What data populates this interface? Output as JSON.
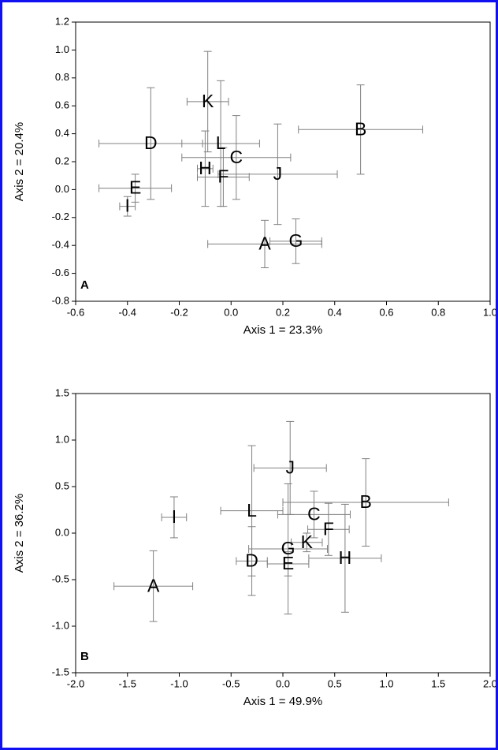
{
  "chart_data": [
    {
      "type": "scatter",
      "panel_label": "A",
      "xlabel": "Axis 1 = 23.3%",
      "ylabel": "Axis 2 = 20.4%",
      "xlim": [
        -0.6,
        1.0
      ],
      "ylim": [
        -0.8,
        1.2
      ],
      "xticks": [
        -0.6,
        -0.4,
        -0.2,
        {
          "value": 0,
          "label": "0.0"
        },
        0.2,
        0.4,
        0.6,
        0.8,
        {
          "value": 1,
          "label": "1.0"
        }
      ],
      "yticks": [
        -0.8,
        -0.6,
        -0.4,
        -0.2,
        {
          "value": 0,
          "label": "0.0"
        },
        0.2,
        0.4,
        0.6,
        0.8,
        {
          "value": 1,
          "label": "1.0"
        },
        1.2
      ],
      "labels": [
        "A",
        "B",
        "C",
        "D",
        "E",
        "F",
        "G",
        "H",
        "I",
        "J",
        "K",
        "L"
      ],
      "x": [
        0.13,
        0.5,
        0.02,
        -0.31,
        -0.37,
        -0.03,
        0.25,
        -0.1,
        -0.4,
        0.18,
        -0.09,
        -0.04
      ],
      "y": [
        -0.39,
        0.43,
        0.23,
        0.33,
        0.01,
        0.09,
        -0.37,
        0.15,
        -0.12,
        0.11,
        0.63,
        0.33
      ],
      "xerr": [
        0.22,
        0.24,
        0.21,
        0.2,
        0.14,
        0.1,
        0.1,
        0.03,
        0.03,
        0.23,
        0.08,
        0.15
      ],
      "yerr": [
        0.17,
        0.32,
        0.3,
        0.4,
        0.1,
        0.21,
        0.16,
        0.27,
        0.07,
        0.36,
        0.36,
        0.45
      ],
      "color": "#808080"
    },
    {
      "type": "scatter",
      "panel_label": "B",
      "xlabel": "Axis 1 = 49.9%",
      "ylabel": "Axis 2 = 36.2%",
      "xlim": [
        -2,
        2
      ],
      "ylim": [
        -1.5,
        1.5
      ],
      "xticks": [
        {
          "value": -2,
          "label": "-2.0"
        },
        -1.5,
        {
          "value": -1,
          "label": "-1.0"
        },
        -0.5,
        {
          "value": 0,
          "label": "0.0"
        },
        0.5,
        {
          "value": 1,
          "label": "1.0"
        },
        1.5,
        {
          "value": 2,
          "label": "2.0"
        }
      ],
      "yticks": [
        -1.5,
        {
          "value": -1,
          "label": "-1.0"
        },
        -0.5,
        {
          "value": 0,
          "label": "0.0"
        },
        0.5,
        {
          "value": 1,
          "label": "1.0"
        },
        1.5
      ],
      "labels": [
        "A",
        "B",
        "C",
        "D",
        "E",
        "F",
        "G",
        "H",
        "I",
        "J",
        "K",
        "L"
      ],
      "x": [
        -1.25,
        0.8,
        0.3,
        -0.3,
        0.05,
        0.44,
        0.05,
        0.6,
        -1.05,
        0.07,
        0.23,
        -0.3
      ],
      "y": [
        -0.57,
        0.33,
        0.2,
        -0.3,
        -0.33,
        0.04,
        -0.17,
        -0.27,
        0.17,
        0.7,
        -0.1,
        0.24
      ],
      "xerr": [
        0.38,
        0.8,
        0.35,
        0.15,
        0.2,
        0.2,
        0.38,
        0.35,
        0.12,
        0.35,
        0.15,
        0.3
      ],
      "yerr": [
        0.38,
        0.47,
        0.25,
        0.37,
        0.13,
        0.28,
        0.7,
        0.58,
        0.22,
        0.5,
        0.1,
        0.7
      ],
      "color": "#808080"
    }
  ]
}
